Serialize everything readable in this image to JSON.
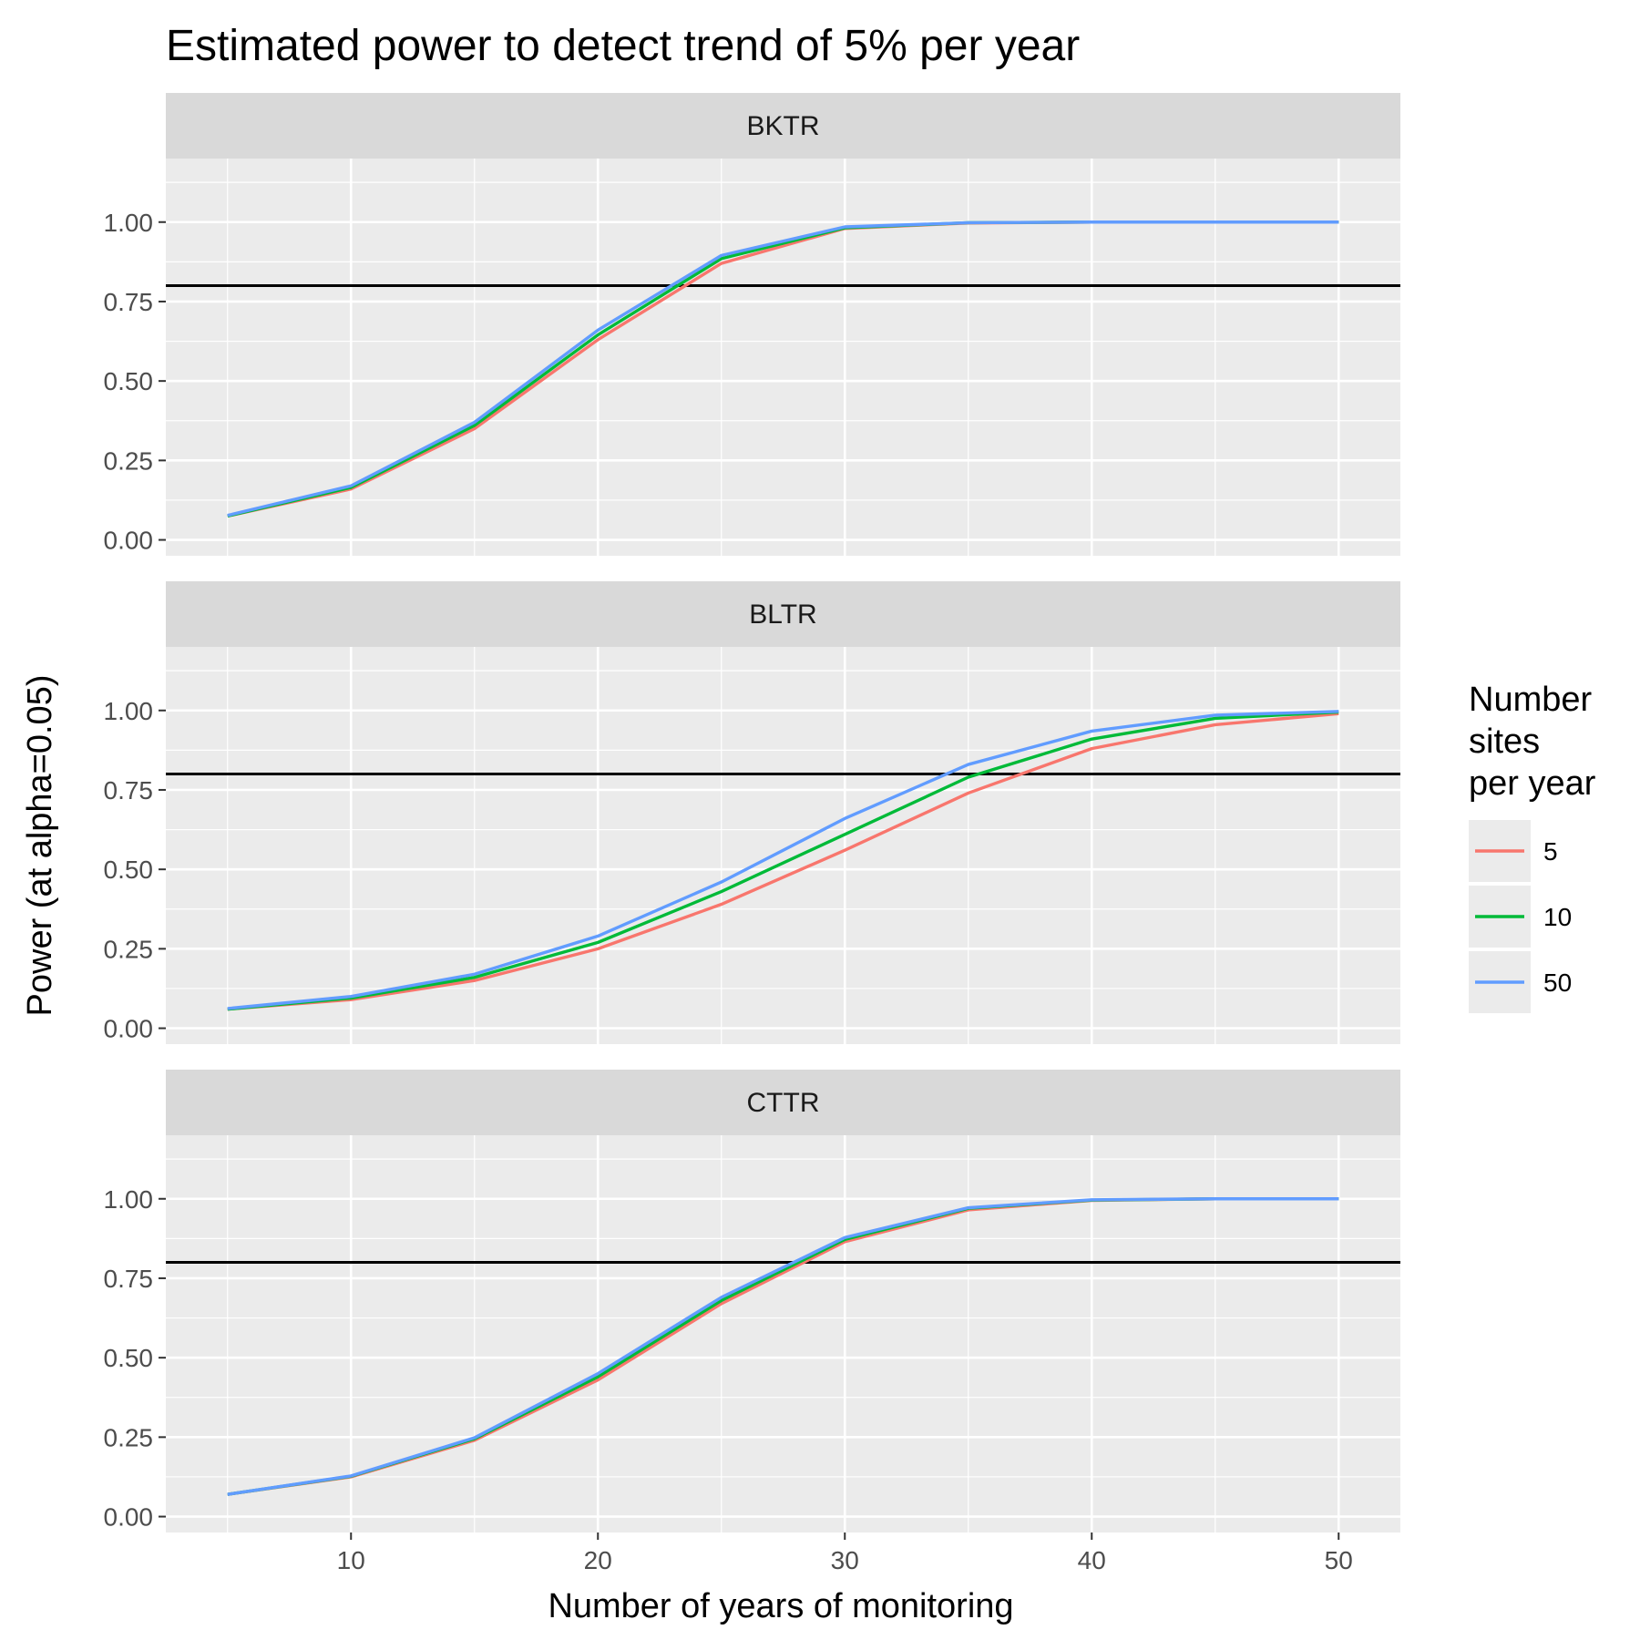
{
  "chart_data": {
    "type": "line",
    "title": "Estimated power to detect trend of 5% per year",
    "xlabel": "Number of years of monitoring",
    "ylabel": "Power (at alpha=0.05)",
    "xlim": [
      2.5,
      52.5
    ],
    "ylim": [
      -0.05,
      1.2
    ],
    "x_ticks": [
      10,
      20,
      30,
      40,
      50
    ],
    "x_tick_labels": [
      "10",
      "20",
      "30",
      "40",
      "50"
    ],
    "y_ticks": [
      0,
      0.25,
      0.5,
      0.75,
      1.0
    ],
    "y_tick_labels": [
      "0.00",
      "0.25",
      "0.50",
      "0.75",
      "1.00"
    ],
    "reference_line": 0.8,
    "grid": true,
    "legend": {
      "title_lines": [
        "Number",
        "sites",
        "per year"
      ],
      "placement": "right"
    },
    "x": [
      5,
      10,
      15,
      20,
      25,
      30,
      35,
      40,
      45,
      50
    ],
    "series_style": [
      {
        "label": "5",
        "color": "#F8766D"
      },
      {
        "label": "10",
        "color": "#00BA38"
      },
      {
        "label": "50",
        "color": "#619CFF"
      }
    ],
    "panels": [
      {
        "label": "BKTR",
        "series": [
          {
            "name": "5",
            "values": [
              0.075,
              0.16,
              0.35,
              0.63,
              0.87,
              0.98,
              0.997,
              1.0,
              1.0,
              1.0
            ]
          },
          {
            "name": "10",
            "values": [
              0.075,
              0.165,
              0.36,
              0.645,
              0.885,
              0.982,
              0.998,
              1.0,
              1.0,
              1.0
            ]
          },
          {
            "name": "50",
            "values": [
              0.077,
              0.17,
              0.37,
              0.66,
              0.895,
              0.985,
              0.998,
              1.0,
              1.0,
              1.0
            ]
          }
        ]
      },
      {
        "label": "BLTR",
        "series": [
          {
            "name": "5",
            "values": [
              0.06,
              0.09,
              0.15,
              0.25,
              0.39,
              0.56,
              0.74,
              0.88,
              0.955,
              0.99
            ]
          },
          {
            "name": "10",
            "values": [
              0.06,
              0.095,
              0.16,
              0.27,
              0.43,
              0.61,
              0.79,
              0.91,
              0.975,
              0.995
            ]
          },
          {
            "name": "50",
            "values": [
              0.062,
              0.1,
              0.17,
              0.29,
              0.46,
              0.66,
              0.83,
              0.935,
              0.985,
              0.997
            ]
          }
        ]
      },
      {
        "label": "CTTR",
        "series": [
          {
            "name": "5",
            "values": [
              0.07,
              0.125,
              0.24,
              0.43,
              0.67,
              0.865,
              0.965,
              0.995,
              1.0,
              1.0
            ]
          },
          {
            "name": "10",
            "values": [
              0.07,
              0.127,
              0.245,
              0.44,
              0.68,
              0.872,
              0.97,
              0.996,
              1.0,
              1.0
            ]
          },
          {
            "name": "50",
            "values": [
              0.07,
              0.128,
              0.248,
              0.45,
              0.69,
              0.878,
              0.972,
              0.997,
              1.0,
              1.0
            ]
          }
        ]
      }
    ]
  }
}
